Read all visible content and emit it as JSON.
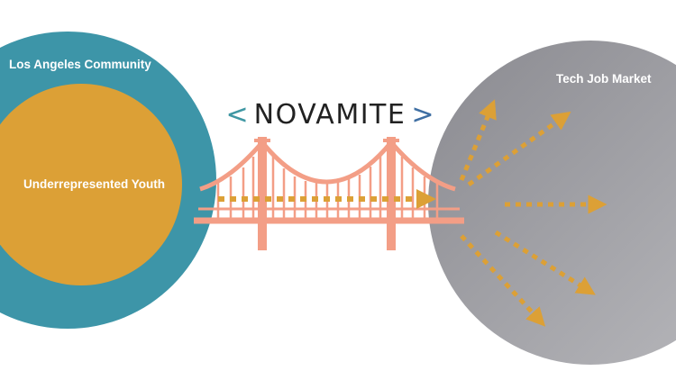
{
  "labels": {
    "community": "Los Angeles Community",
    "youth": "Underrepresented Youth",
    "market": "Tech Job Market"
  },
  "logo": {
    "left_bracket": "<",
    "word": "NOVAMITE",
    "right_bracket": ">"
  },
  "colors": {
    "community_circle": "#3d95a8",
    "youth_circle": "#dca036",
    "market_circle": "#8f8f94",
    "bridge": "#f39e86",
    "arrows": "#dca036",
    "logo_left_bracket": "#3f97a3",
    "logo_right_bracket": "#3f6fa3",
    "logo_text": "#222222"
  }
}
